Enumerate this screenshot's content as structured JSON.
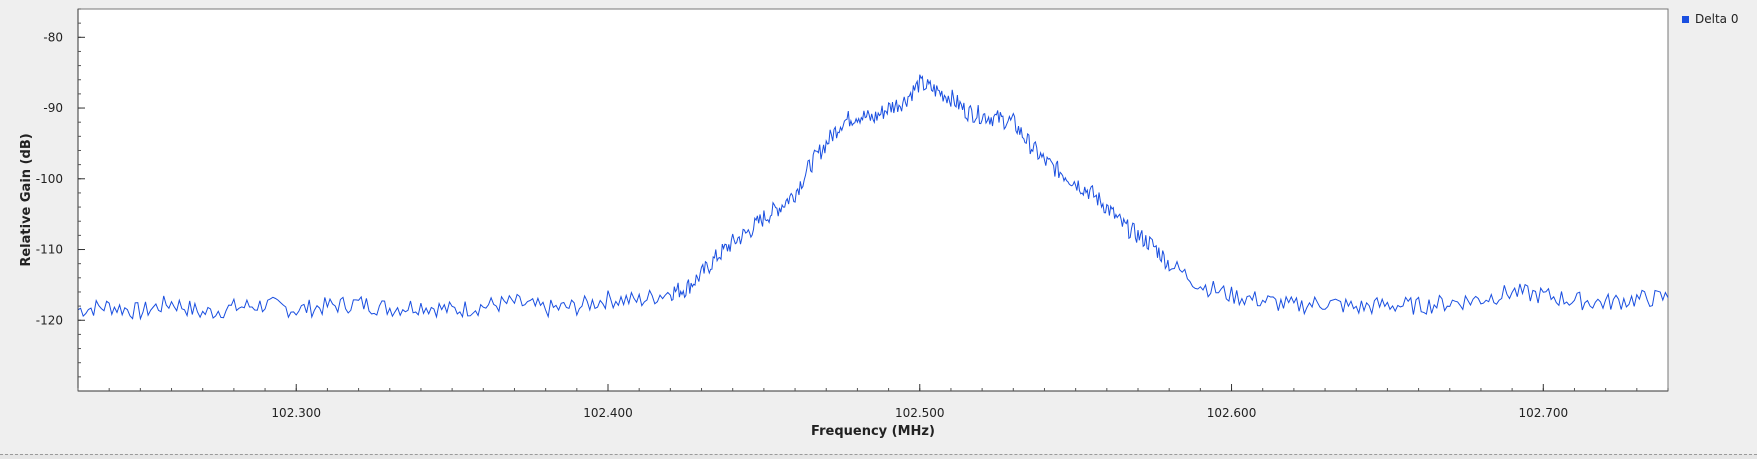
{
  "chart_data": {
    "type": "line",
    "xlabel": "Frequency (MHz)",
    "ylabel": "Relative Gain (dB)",
    "xlim": [
      102.23,
      102.74
    ],
    "ylim": [
      -130,
      -76
    ],
    "x_ticks": [
      102.3,
      102.4,
      102.5,
      102.6,
      102.7
    ],
    "x_tick_labels": [
      "102.300",
      "102.400",
      "102.500",
      "102.600",
      "102.700"
    ],
    "y_ticks": [
      -80,
      -90,
      -100,
      -110,
      -120
    ],
    "y_tick_labels": [
      "-80",
      "-90",
      "-100",
      "-110",
      "-120"
    ],
    "grid": false,
    "legend_position": "top-right",
    "series": [
      {
        "name": "Delta 0",
        "color": "#1a4fe0",
        "x": [
          102.23,
          102.24,
          102.25,
          102.26,
          102.27,
          102.28,
          102.29,
          102.3,
          102.31,
          102.32,
          102.33,
          102.34,
          102.35,
          102.36,
          102.37,
          102.38,
          102.39,
          102.4,
          102.41,
          102.42,
          102.425,
          102.43,
          102.435,
          102.44,
          102.445,
          102.45,
          102.455,
          102.46,
          102.465,
          102.47,
          102.475,
          102.48,
          102.485,
          102.49,
          102.495,
          102.5,
          102.505,
          102.51,
          102.515,
          102.52,
          102.525,
          102.53,
          102.535,
          102.54,
          102.545,
          102.55,
          102.555,
          102.56,
          102.565,
          102.57,
          102.575,
          102.58,
          102.59,
          102.6,
          102.61,
          102.62,
          102.63,
          102.64,
          102.65,
          102.66,
          102.67,
          102.68,
          102.69,
          102.7,
          102.71,
          102.72,
          102.73,
          102.74
        ],
        "values": [
          -118.5,
          -118.0,
          -118.8,
          -117.5,
          -119.0,
          -118.2,
          -117.8,
          -118.5,
          -118.0,
          -117.6,
          -118.3,
          -117.9,
          -118.6,
          -118.0,
          -117.5,
          -118.4,
          -118.1,
          -117.0,
          -117.2,
          -116.0,
          -115.5,
          -113.5,
          -111.0,
          -109.0,
          -107.5,
          -105.5,
          -104.0,
          -102.0,
          -98.0,
          -95.0,
          -92.0,
          -91.0,
          -91.5,
          -90.0,
          -89.0,
          -86.5,
          -87.5,
          -88.5,
          -90.5,
          -91.0,
          -91.5,
          -92.0,
          -95.0,
          -97.5,
          -99.0,
          -100.5,
          -102.0,
          -104.0,
          -106.5,
          -108.0,
          -109.5,
          -112.0,
          -115.0,
          -116.5,
          -117.2,
          -118.0,
          -117.5,
          -118.2,
          -117.8,
          -118.0,
          -117.5,
          -117.0,
          -116.0,
          -116.5,
          -117.2,
          -117.5,
          -117.0,
          -116.8
        ]
      }
    ]
  }
}
